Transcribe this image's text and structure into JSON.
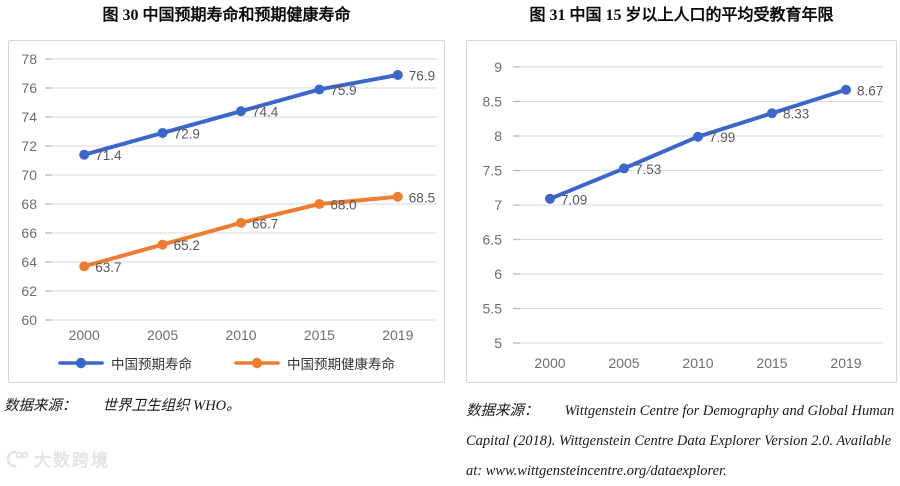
{
  "figures": [
    {
      "source_prefix": "数据来源：",
      "source_text": "世界卫生组织 WHO。"
    },
    {
      "source_prefix": "数据来源：",
      "source_text": "Wittgenstein Centre for Demography and Global Human Capital (2018). Wittgenstein Centre Data Explorer Version 2.0. Available at: www.wittgensteincentre.org/dataexplorer."
    }
  ],
  "chart_data": [
    {
      "type": "line",
      "title": "图 30 中国预期寿命和预期健康寿命",
      "categories": [
        "2000",
        "2005",
        "2010",
        "2015",
        "2019"
      ],
      "series": [
        {
          "name": "中国预期寿命",
          "color": "#3b66cb",
          "values": [
            71.4,
            72.9,
            74.4,
            75.9,
            76.9
          ],
          "point_labels": [
            "71.4",
            "72.9",
            "74.4",
            "75.9",
            "76.9"
          ]
        },
        {
          "name": "中国预期健康寿命",
          "color": "#ed7d31",
          "values": [
            63.7,
            65.2,
            66.7,
            68.0,
            68.5
          ],
          "point_labels": [
            "63.7",
            "65.2",
            "66.7",
            "68.0",
            "68.5"
          ]
        }
      ],
      "xlabel": "",
      "ylabel": "",
      "ylim": [
        60,
        78
      ],
      "ytick_step": 2,
      "ytick_labels": [
        "78",
        "76",
        "74",
        "72",
        "70",
        "68",
        "66",
        "64",
        "62",
        "60"
      ],
      "grid": true,
      "legend_position": "bottom"
    },
    {
      "type": "line",
      "title": "图 31 中国 15 岁以上人口的平均受教育年限",
      "categories": [
        "2000",
        "2005",
        "2010",
        "2015",
        "2019"
      ],
      "series": [
        {
          "name": "",
          "color": "#3b66cb",
          "values": [
            7.09,
            7.53,
            7.99,
            8.33,
            8.67
          ],
          "point_labels": [
            "7.09",
            "7.53",
            "7.99",
            "8.33",
            "8.67"
          ]
        }
      ],
      "xlabel": "",
      "ylabel": "",
      "ylim": [
        5,
        9
      ],
      "ytick_step": 0.5,
      "ytick_labels": [
        "9",
        "8.5",
        "8",
        "7.5",
        "7",
        "6.5",
        "6",
        "5.5",
        "5"
      ],
      "grid": true,
      "legend_position": "none"
    }
  ],
  "colors": {
    "line_blue": "#3b66cb",
    "line_orange": "#ed7d31",
    "gridline": "#d9d9d9",
    "axis_text": "#6e6e6e",
    "data_label": "#595959"
  },
  "watermark": {
    "text": "大数跨境",
    "icon": "dashukuajing-logo"
  }
}
